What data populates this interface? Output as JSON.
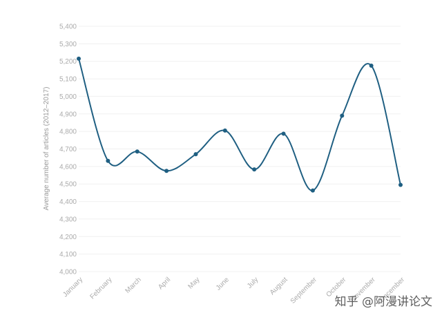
{
  "chart_data": {
    "type": "line",
    "categories": [
      "January",
      "February",
      "March",
      "April",
      "May",
      "June",
      "July",
      "August",
      "September",
      "October",
      "November",
      "December"
    ],
    "series": [
      {
        "values": [
          5215,
          4632,
          4685,
          4575,
          4670,
          4805,
          4583,
          4787,
          4463,
          4890,
          5175,
          4495
        ]
      }
    ],
    "ylabel": "Average number of articles (2012–2017)",
    "ylim": [
      4000,
      5400
    ],
    "yticks": [
      "4,000",
      "4,100",
      "4,200",
      "4,300",
      "4,400",
      "4,500",
      "4,600",
      "4,700",
      "4,800",
      "4,900",
      "5,000",
      "5,100",
      "5,200",
      "5,300",
      "5,400"
    ],
    "grid": true,
    "line_color": "#1f5f82"
  },
  "watermark": "知乎 @阿漫讲论文"
}
